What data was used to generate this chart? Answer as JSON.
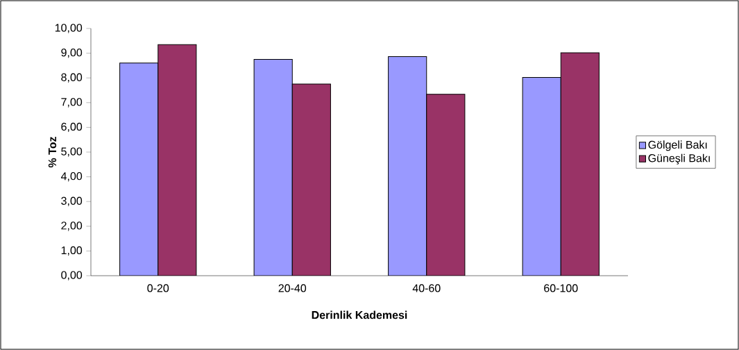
{
  "chart_data": {
    "type": "bar",
    "xlabel": "Derinlik Kademesi",
    "ylabel": "% Toz",
    "categories": [
      "0-20",
      "20-40",
      "40-60",
      "60-100"
    ],
    "series": [
      {
        "name": "Gölgeli Bakı",
        "color": "#9999ff",
        "values": [
          8.6,
          8.75,
          8.86,
          8.02
        ]
      },
      {
        "name": "Güneşli Bakı",
        "color": "#993366",
        "values": [
          9.35,
          7.75,
          7.34,
          9.02
        ]
      }
    ],
    "ylim": [
      0,
      10
    ],
    "yticks": [
      {
        "value": 0,
        "label": "0,00"
      },
      {
        "value": 1,
        "label": "1,00"
      },
      {
        "value": 2,
        "label": "2,00"
      },
      {
        "value": 3,
        "label": "3,00"
      },
      {
        "value": 4,
        "label": "4,00"
      },
      {
        "value": 5,
        "label": "5,00"
      },
      {
        "value": 6,
        "label": "6,00"
      },
      {
        "value": 7,
        "label": "7,00"
      },
      {
        "value": 8,
        "label": "8,00"
      },
      {
        "value": 9,
        "label": "9,00"
      },
      {
        "value": 10,
        "label": "10,00"
      }
    ],
    "grid": false,
    "legend": "right"
  }
}
